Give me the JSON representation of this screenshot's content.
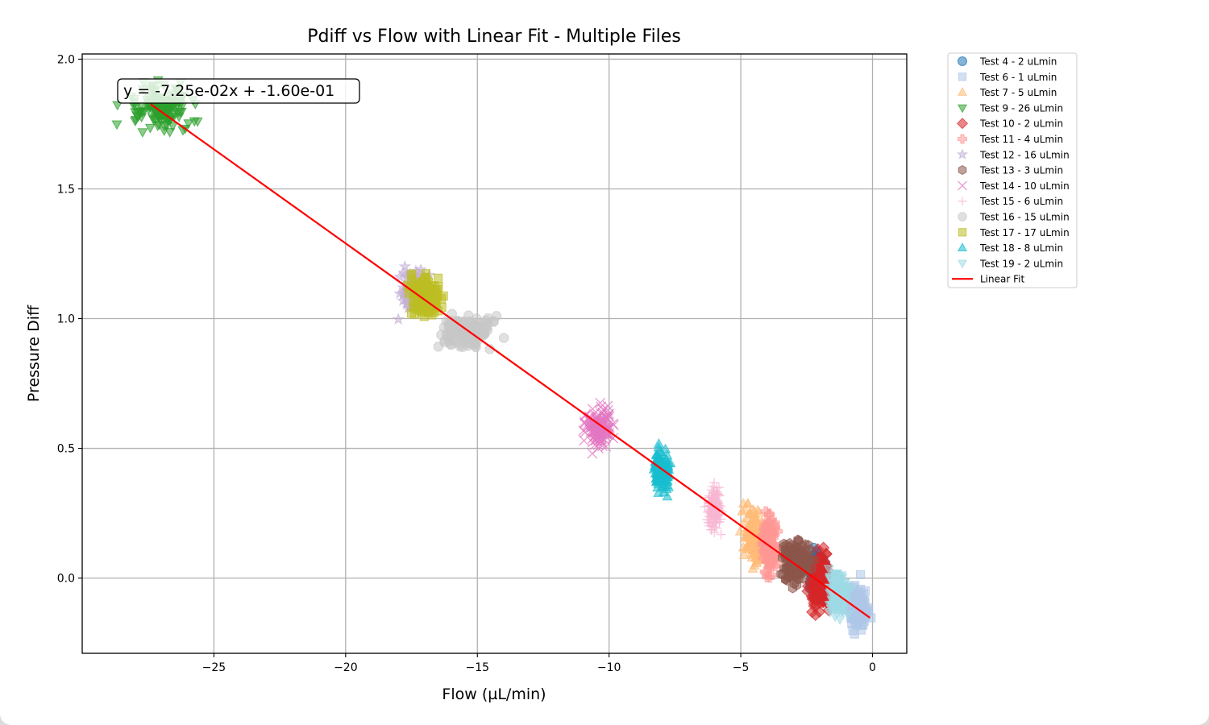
{
  "chart_data": {
    "type": "scatter",
    "title": "Pdiff vs Flow with Linear Fit - Multiple Files",
    "xlabel": "Flow (µL/min)",
    "ylabel": "Pressure Diff",
    "xlim": [
      -30,
      1.3
    ],
    "ylim": [
      -0.29,
      2.02
    ],
    "xticks": [
      -25,
      -20,
      -15,
      -10,
      -5,
      0
    ],
    "xtick_labels": [
      "−25",
      "−20",
      "−15",
      "−10",
      "−5",
      "0"
    ],
    "yticks": [
      0.0,
      0.5,
      1.0,
      1.5,
      2.0
    ],
    "ytick_labels": [
      "0.0",
      "0.5",
      "1.0",
      "1.5",
      "2.0"
    ],
    "grid": true,
    "legend_position": "outside-right",
    "annotation": "y = -7.25e-02x + -1.60e-01",
    "fit_line": {
      "name": "Linear Fit",
      "slope": -0.0725,
      "intercept": -0.16,
      "x_range": [
        -27.4,
        -0.1
      ],
      "color": "#ff0000"
    },
    "series": [
      {
        "name": "Test 4 - 2 uLmin",
        "marker": "circle",
        "color": "#1f77b4",
        "x_center": -2.1,
        "y_center": 0.02,
        "x_spread": 0.3,
        "y_spread": 0.07
      },
      {
        "name": "Test 6 - 1 uLmin",
        "marker": "square",
        "color": "#aec7e8",
        "x_center": -0.6,
        "y_center": -0.11,
        "x_spread": 0.4,
        "y_spread": 0.08
      },
      {
        "name": "Test 7 - 5 uLmin",
        "marker": "triangle-up",
        "color": "#ffbb78",
        "x_center": -4.5,
        "y_center": 0.17,
        "x_spread": 0.4,
        "y_spread": 0.11
      },
      {
        "name": "Test 9 - 26 uLmin",
        "marker": "triangle-down",
        "color": "#2ca02c",
        "x_center": -27.0,
        "y_center": 1.81,
        "x_spread": 1.3,
        "y_spread": 0.08
      },
      {
        "name": "Test 10 - 2 uLmin",
        "marker": "diamond",
        "color": "#d62728",
        "x_center": -2.0,
        "y_center": -0.01,
        "x_spread": 0.35,
        "y_spread": 0.11
      },
      {
        "name": "Test 11 - 4 uLmin",
        "marker": "plus",
        "color": "#ff9896",
        "x_center": -3.9,
        "y_center": 0.13,
        "x_spread": 0.25,
        "y_spread": 0.09
      },
      {
        "name": "Test 12 - 16 uLmin",
        "marker": "star",
        "color": "#c5b0d5",
        "x_center": -17.4,
        "y_center": 1.1,
        "x_spread": 0.5,
        "y_spread": 0.07
      },
      {
        "name": "Test 13 - 3 uLmin",
        "marker": "hexagon",
        "color": "#8c564b",
        "x_center": -2.9,
        "y_center": 0.06,
        "x_spread": 0.5,
        "y_spread": 0.08
      },
      {
        "name": "Test 14 - 10 uLmin",
        "marker": "x",
        "color": "#e377c2",
        "x_center": -10.4,
        "y_center": 0.58,
        "x_spread": 0.5,
        "y_spread": 0.07
      },
      {
        "name": "Test 15 - 6 uLmin",
        "marker": "thin-plus",
        "color": "#f7b6d2",
        "x_center": -6.0,
        "y_center": 0.27,
        "x_spread": 0.25,
        "y_spread": 0.07
      },
      {
        "name": "Test 16 - 15 uLmin",
        "marker": "octagon",
        "color": "#c7c7c7",
        "x_center": -15.3,
        "y_center": 0.95,
        "x_spread": 0.9,
        "y_spread": 0.06
      },
      {
        "name": "Test 17 - 17 uLmin",
        "marker": "square",
        "color": "#bcbd22",
        "x_center": -17.0,
        "y_center": 1.08,
        "x_spread": 0.6,
        "y_spread": 0.07
      },
      {
        "name": "Test 18 - 8 uLmin",
        "marker": "triangle-up",
        "color": "#17becf",
        "x_center": -8.0,
        "y_center": 0.42,
        "x_spread": 0.3,
        "y_spread": 0.08
      },
      {
        "name": "Test 19 - 2 uLmin",
        "marker": "triangle-down",
        "color": "#9edae5",
        "x_center": -1.3,
        "y_center": -0.06,
        "x_spread": 0.35,
        "y_spread": 0.08
      }
    ]
  }
}
